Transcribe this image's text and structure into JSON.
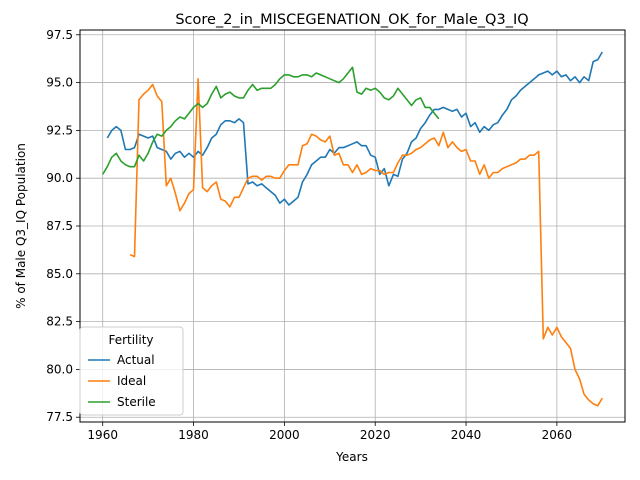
{
  "chart_data": {
    "type": "line",
    "title": "Score_2_in_MISCEGENATION_OK_for_Male_Q3_IQ",
    "xlabel": "Years",
    "ylabel": "% of Male Q3_IQ Population",
    "xlim": [
      1955,
      2075
    ],
    "ylim": [
      77.25,
      97.75
    ],
    "xticks": [
      1960,
      1980,
      2000,
      2020,
      2040,
      2060
    ],
    "yticks": [
      77.5,
      80.0,
      82.5,
      85.0,
      87.5,
      90.0,
      92.5,
      95.0,
      97.5
    ],
    "xtick_labels": [
      "1960",
      "1980",
      "2000",
      "2020",
      "2040",
      "2060"
    ],
    "ytick_labels": [
      "77.5",
      "80.0",
      "82.5",
      "85.0",
      "87.5",
      "90.0",
      "92.5",
      "95.0",
      "97.5"
    ],
    "grid": true,
    "legend": {
      "title": "Fertility",
      "position": "lower-left"
    },
    "series": [
      {
        "name": "Actual",
        "color": "#1f77b4",
        "x": [
          1961,
          1962,
          1963,
          1964,
          1965,
          1966,
          1967,
          1968,
          1969,
          1970,
          1971,
          1972,
          1973,
          1974,
          1975,
          1976,
          1977,
          1978,
          1979,
          1980,
          1981,
          1982,
          1983,
          1984,
          1985,
          1986,
          1987,
          1988,
          1989,
          1990,
          1991,
          1992,
          1993,
          1994,
          1995,
          1996,
          1997,
          1998,
          1999,
          2000,
          2001,
          2002,
          2003,
          2004,
          2005,
          2006,
          2007,
          2008,
          2009,
          2010,
          2011,
          2012,
          2013,
          2014,
          2015,
          2016,
          2017,
          2018,
          2019,
          2020,
          2021,
          2022,
          2023,
          2024,
          2025,
          2026,
          2027,
          2028,
          2029,
          2030,
          2031,
          2032,
          2033,
          2034,
          2035,
          2036,
          2037,
          2038,
          2039,
          2040,
          2041,
          2042,
          2043,
          2044,
          2045,
          2046,
          2047,
          2048,
          2049,
          2050,
          2051,
          2052,
          2053,
          2054,
          2055,
          2056,
          2057,
          2058,
          2059,
          2060,
          2061,
          2062,
          2063,
          2064,
          2065,
          2066,
          2067,
          2068,
          2069,
          2070
        ],
        "y": [
          92.1,
          92.5,
          92.7,
          92.5,
          91.5,
          91.5,
          91.6,
          92.3,
          92.2,
          92.1,
          92.2,
          91.6,
          91.5,
          91.4,
          91.0,
          91.3,
          91.4,
          91.1,
          91.3,
          91.1,
          91.4,
          91.2,
          91.6,
          92.1,
          92.3,
          92.8,
          93.0,
          93.0,
          92.9,
          93.1,
          92.9,
          89.7,
          89.8,
          89.6,
          89.7,
          89.5,
          89.3,
          89.1,
          88.7,
          88.9,
          88.6,
          88.8,
          89.0,
          89.8,
          90.2,
          90.7,
          90.9,
          91.1,
          91.1,
          91.5,
          91.3,
          91.6,
          91.6,
          91.7,
          91.8,
          91.9,
          91.7,
          91.7,
          91.2,
          91.1,
          90.2,
          90.5,
          89.6,
          90.2,
          90.1,
          91.0,
          91.3,
          91.9,
          92.1,
          92.6,
          92.9,
          93.3,
          93.6,
          93.6,
          93.7,
          93.6,
          93.5,
          93.6,
          93.2,
          93.4,
          92.7,
          92.9,
          92.4,
          92.7,
          92.5,
          92.8,
          92.9,
          93.3,
          93.6,
          94.1,
          94.3,
          94.6,
          94.8,
          95.0,
          95.2,
          95.4,
          95.5,
          95.6,
          95.4,
          95.6,
          95.3,
          95.4,
          95.1,
          95.3,
          95.0,
          95.3,
          95.1,
          96.1,
          96.2,
          96.6
        ]
      },
      {
        "name": "Ideal",
        "color": "#ff7f0e",
        "x": [
          1966,
          1967,
          1968,
          1969,
          1970,
          1971,
          1972,
          1973,
          1974,
          1975,
          1976,
          1977,
          1978,
          1979,
          1980,
          1981,
          1982,
          1983,
          1984,
          1985,
          1986,
          1987,
          1988,
          1989,
          1990,
          1991,
          1992,
          1993,
          1994,
          1995,
          1996,
          1997,
          1998,
          1999,
          2000,
          2001,
          2002,
          2003,
          2004,
          2005,
          2006,
          2007,
          2008,
          2009,
          2010,
          2011,
          2012,
          2013,
          2014,
          2015,
          2016,
          2017,
          2018,
          2019,
          2020,
          2021,
          2022,
          2023,
          2024,
          2025,
          2026,
          2027,
          2028,
          2029,
          2030,
          2031,
          2032,
          2033,
          2034,
          2035,
          2036,
          2037,
          2038,
          2039,
          2040,
          2041,
          2042,
          2043,
          2044,
          2045,
          2046,
          2047,
          2048,
          2049,
          2050,
          2051,
          2052,
          2053,
          2054,
          2055,
          2056,
          2057,
          2058,
          2059,
          2060,
          2061,
          2062,
          2063,
          2064,
          2065,
          2066,
          2067,
          2068,
          2069,
          2070
        ],
        "y": [
          86.0,
          85.9,
          94.1,
          94.4,
          94.6,
          94.9,
          94.3,
          94.0,
          89.6,
          90.0,
          89.2,
          88.3,
          88.7,
          89.2,
          89.4,
          95.2,
          89.5,
          89.3,
          89.6,
          89.8,
          88.9,
          88.8,
          88.5,
          89.0,
          89.0,
          89.5,
          90.0,
          90.1,
          90.1,
          89.9,
          90.1,
          90.1,
          90.0,
          90.0,
          90.4,
          90.7,
          90.7,
          90.7,
          91.7,
          91.8,
          92.3,
          92.2,
          92.0,
          91.9,
          92.2,
          91.2,
          91.3,
          90.7,
          90.7,
          90.3,
          90.7,
          90.2,
          90.3,
          90.5,
          90.4,
          90.4,
          90.2,
          90.3,
          90.3,
          90.8,
          91.2,
          91.2,
          91.3,
          91.5,
          91.6,
          91.8,
          92.0,
          92.1,
          91.7,
          92.4,
          91.6,
          91.9,
          91.6,
          91.4,
          91.5,
          90.9,
          90.9,
          90.2,
          90.7,
          90.0,
          90.3,
          90.3,
          90.5,
          90.6,
          90.7,
          90.8,
          91.0,
          91.0,
          91.2,
          91.2,
          91.4,
          81.6,
          82.2,
          81.8,
          82.2,
          81.7,
          81.4,
          81.1,
          80.0,
          79.5,
          78.7,
          78.4,
          78.2,
          78.1,
          78.5
        ]
      },
      {
        "name": "Sterile",
        "color": "#2ca02c",
        "x": [
          1960,
          1961,
          1962,
          1963,
          1964,
          1965,
          1966,
          1967,
          1968,
          1969,
          1970,
          1971,
          1972,
          1973,
          1974,
          1975,
          1976,
          1977,
          1978,
          1979,
          1980,
          1981,
          1982,
          1983,
          1984,
          1985,
          1986,
          1987,
          1988,
          1989,
          1990,
          1991,
          1992,
          1993,
          1994,
          1995,
          1996,
          1997,
          1998,
          1999,
          2000,
          2001,
          2002,
          2003,
          2004,
          2005,
          2006,
          2007,
          2008,
          2009,
          2010,
          2011,
          2012,
          2013,
          2014,
          2015,
          2016,
          2017,
          2018,
          2019,
          2020,
          2021,
          2022,
          2023,
          2024,
          2025,
          2026,
          2027,
          2028,
          2029,
          2030,
          2031,
          2032,
          2033,
          2034
        ],
        "y": [
          90.2,
          90.6,
          91.1,
          91.3,
          90.9,
          90.7,
          90.6,
          90.6,
          91.2,
          90.9,
          91.3,
          91.9,
          92.3,
          92.2,
          92.5,
          92.7,
          93.0,
          93.2,
          93.1,
          93.4,
          93.7,
          93.9,
          93.7,
          93.9,
          94.4,
          94.8,
          94.2,
          94.4,
          94.5,
          94.3,
          94.2,
          94.2,
          94.6,
          94.9,
          94.6,
          94.7,
          94.7,
          94.7,
          94.9,
          95.2,
          95.4,
          95.4,
          95.3,
          95.3,
          95.4,
          95.4,
          95.3,
          95.5,
          95.4,
          95.3,
          95.2,
          95.1,
          95.0,
          95.2,
          95.5,
          95.8,
          94.5,
          94.4,
          94.7,
          94.6,
          94.7,
          94.5,
          94.2,
          94.1,
          94.3,
          94.7,
          94.4,
          94.1,
          93.8,
          94.1,
          94.2,
          93.7,
          93.7,
          93.4,
          93.1
        ]
      }
    ]
  }
}
